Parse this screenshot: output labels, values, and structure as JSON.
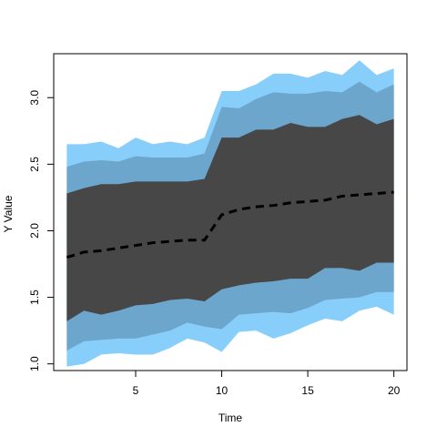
{
  "chart_data": {
    "type": "area",
    "title": "",
    "xlabel": "Time",
    "ylabel": "Y Value",
    "x": [
      1,
      2,
      3,
      4,
      5,
      6,
      7,
      8,
      9,
      10,
      11,
      12,
      13,
      14,
      15,
      16,
      17,
      18,
      19,
      20
    ],
    "xlim": [
      0.24,
      20.76
    ],
    "ylim": [
      0.95,
      3.33
    ],
    "xticks": [
      5,
      10,
      15,
      20
    ],
    "yticks": [
      1.0,
      1.5,
      2.0,
      2.5,
      3.0
    ],
    "xtick_labels": [
      "5",
      "10",
      "15",
      "20"
    ],
    "ytick_labels": [
      "1.0",
      "1.5",
      "2.0",
      "2.5",
      "3.0"
    ],
    "grid": false,
    "bands": [
      {
        "color": "#87cefa",
        "upper": [
          2.65,
          2.65,
          2.67,
          2.62,
          2.7,
          2.65,
          2.67,
          2.65,
          2.7,
          3.05,
          3.05,
          3.1,
          3.18,
          3.18,
          3.15,
          3.2,
          3.17,
          3.28,
          3.17,
          3.22
        ],
        "lower": [
          0.98,
          1.0,
          1.07,
          1.08,
          1.07,
          1.07,
          1.12,
          1.19,
          1.16,
          1.09,
          1.24,
          1.25,
          1.19,
          1.23,
          1.29,
          1.34,
          1.32,
          1.4,
          1.43,
          1.37
        ]
      },
      {
        "color": "#6ca6cd",
        "upper": [
          2.48,
          2.52,
          2.53,
          2.52,
          2.56,
          2.55,
          2.55,
          2.55,
          2.58,
          2.93,
          2.92,
          2.99,
          3.04,
          3.03,
          3.03,
          3.05,
          3.04,
          3.12,
          3.04,
          3.1
        ],
        "lower": [
          1.1,
          1.17,
          1.18,
          1.19,
          1.19,
          1.22,
          1.25,
          1.31,
          1.28,
          1.26,
          1.37,
          1.38,
          1.39,
          1.38,
          1.42,
          1.48,
          1.49,
          1.5,
          1.54,
          1.54
        ]
      },
      {
        "color": "#474747",
        "upper": [
          2.28,
          2.32,
          2.35,
          2.35,
          2.37,
          2.37,
          2.37,
          2.37,
          2.39,
          2.7,
          2.7,
          2.76,
          2.76,
          2.81,
          2.78,
          2.78,
          2.84,
          2.87,
          2.8,
          2.84
        ],
        "lower": [
          1.32,
          1.4,
          1.37,
          1.4,
          1.44,
          1.45,
          1.48,
          1.49,
          1.47,
          1.56,
          1.59,
          1.61,
          1.62,
          1.64,
          1.64,
          1.72,
          1.72,
          1.7,
          1.76,
          1.76
        ]
      }
    ],
    "median": {
      "color": "#000000",
      "style": "dashed",
      "values": [
        1.8,
        1.84,
        1.85,
        1.87,
        1.89,
        1.91,
        1.92,
        1.93,
        1.93,
        2.12,
        2.16,
        2.18,
        2.19,
        2.21,
        2.22,
        2.23,
        2.26,
        2.27,
        2.28,
        2.29
      ]
    }
  }
}
